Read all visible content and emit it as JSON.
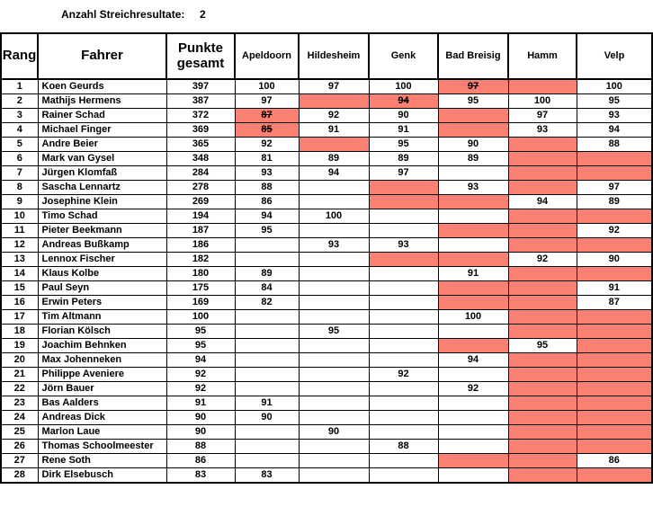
{
  "topbar": {
    "label": "Anzahl Streichresultate:",
    "value": "2"
  },
  "colors": {
    "highlight": "#FA8072",
    "border": "#000000",
    "background": "#FFFFFF"
  },
  "table": {
    "headers": {
      "rang": "Rang",
      "fahrer": "Fahrer",
      "punkte": "Punkte gesamt",
      "races": [
        "Apeldoorn",
        "Hildesheim",
        "Genk",
        "Bad Breisig",
        "Hamm",
        "Velp"
      ]
    },
    "race_keys": [
      "apeldoorn",
      "hildesheim",
      "genk",
      "bad-breisig",
      "hamm",
      "velp"
    ],
    "rows": [
      {
        "rang": "1",
        "fahrer": "Koen Geurds",
        "punkte": "397",
        "results": [
          {
            "value": "100"
          },
          {
            "value": "97"
          },
          {
            "value": "100"
          },
          {
            "value": "97",
            "red": true,
            "strike": true
          },
          {
            "red": true
          },
          {
            "value": "100"
          }
        ]
      },
      {
        "rang": "2",
        "fahrer": "Mathijs Hermens",
        "punkte": "387",
        "results": [
          {
            "value": "97"
          },
          {
            "red": true
          },
          {
            "value": "94",
            "red": true,
            "strike": true
          },
          {
            "value": "95"
          },
          {
            "value": "100"
          },
          {
            "value": "95"
          }
        ]
      },
      {
        "rang": "3",
        "fahrer": "Rainer Schad",
        "punkte": "372",
        "results": [
          {
            "value": "87",
            "red": true,
            "strike": true
          },
          {
            "value": "92"
          },
          {
            "value": "90"
          },
          {
            "red": true
          },
          {
            "value": "97"
          },
          {
            "value": "93"
          }
        ]
      },
      {
        "rang": "4",
        "fahrer": "Michael Finger",
        "punkte": "369",
        "results": [
          {
            "value": "85",
            "red": true,
            "strike": true
          },
          {
            "value": "91"
          },
          {
            "value": "91"
          },
          {
            "red": true
          },
          {
            "value": "93"
          },
          {
            "value": "94"
          }
        ]
      },
      {
        "rang": "5",
        "fahrer": "Andre Beier",
        "punkte": "365",
        "results": [
          {
            "value": "92"
          },
          {
            "red": true
          },
          {
            "value": "95"
          },
          {
            "value": "90"
          },
          {
            "red": true
          },
          {
            "value": "88"
          }
        ]
      },
      {
        "rang": "6",
        "fahrer": "Mark van Gysel",
        "punkte": "348",
        "results": [
          {
            "value": "81"
          },
          {
            "value": "89"
          },
          {
            "value": "89"
          },
          {
            "value": "89"
          },
          {
            "red": true
          },
          {
            "red": true
          }
        ]
      },
      {
        "rang": "7",
        "fahrer": "Jürgen Klomfaß",
        "punkte": "284",
        "results": [
          {
            "value": "93"
          },
          {
            "value": "94"
          },
          {
            "value": "97"
          },
          {},
          {
            "red": true
          },
          {
            "red": true
          }
        ]
      },
      {
        "rang": "8",
        "fahrer": "Sascha Lennartz",
        "punkte": "278",
        "results": [
          {
            "value": "88"
          },
          {},
          {
            "red": true
          },
          {
            "value": "93"
          },
          {
            "red": true
          },
          {
            "value": "97"
          }
        ]
      },
      {
        "rang": "9",
        "fahrer": "Josephine Klein",
        "punkte": "269",
        "results": [
          {
            "value": "86"
          },
          {},
          {
            "red": true
          },
          {
            "red": true
          },
          {
            "value": "94"
          },
          {
            "value": "89"
          }
        ]
      },
      {
        "rang": "10",
        "fahrer": "Timo Schad",
        "punkte": "194",
        "results": [
          {
            "value": "94"
          },
          {
            "value": "100"
          },
          {},
          {},
          {
            "red": true
          },
          {
            "red": true
          }
        ]
      },
      {
        "rang": "11",
        "fahrer": "Pieter Beekmann",
        "punkte": "187",
        "results": [
          {
            "value": "95"
          },
          {},
          {},
          {
            "red": true
          },
          {
            "red": true
          },
          {
            "value": "92"
          }
        ]
      },
      {
        "rang": "12",
        "fahrer": "Andreas Bußkamp",
        "punkte": "186",
        "results": [
          {},
          {
            "value": "93"
          },
          {
            "value": "93"
          },
          {},
          {
            "red": true
          },
          {
            "red": true
          }
        ]
      },
      {
        "rang": "13",
        "fahrer": "Lennox Fischer",
        "punkte": "182",
        "results": [
          {},
          {},
          {
            "red": true
          },
          {
            "red": true
          },
          {
            "value": "92"
          },
          {
            "value": "90"
          }
        ]
      },
      {
        "rang": "14",
        "fahrer": "Klaus Kolbe",
        "punkte": "180",
        "results": [
          {
            "value": "89"
          },
          {},
          {},
          {
            "value": "91"
          },
          {
            "red": true
          },
          {
            "red": true
          }
        ]
      },
      {
        "rang": "15",
        "fahrer": "Paul Seyn",
        "punkte": "175",
        "results": [
          {
            "value": "84"
          },
          {},
          {},
          {
            "red": true
          },
          {
            "red": true
          },
          {
            "value": "91"
          }
        ]
      },
      {
        "rang": "16",
        "fahrer": "Erwin Peters",
        "punkte": "169",
        "results": [
          {
            "value": "82"
          },
          {},
          {},
          {
            "red": true
          },
          {
            "red": true
          },
          {
            "value": "87"
          }
        ]
      },
      {
        "rang": "17",
        "fahrer": "Tim Altmann",
        "punkte": "100",
        "results": [
          {},
          {},
          {},
          {
            "value": "100"
          },
          {
            "red": true
          },
          {
            "red": true
          }
        ]
      },
      {
        "rang": "18",
        "fahrer": "Florian Kölsch",
        "punkte": "95",
        "results": [
          {},
          {
            "value": "95"
          },
          {},
          {},
          {
            "red": true
          },
          {
            "red": true
          }
        ]
      },
      {
        "rang": "19",
        "fahrer": "Joachim Behnken",
        "punkte": "95",
        "results": [
          {},
          {},
          {},
          {
            "red": true
          },
          {
            "value": "95"
          },
          {
            "red": true
          }
        ]
      },
      {
        "rang": "20",
        "fahrer": "Max Johenneken",
        "punkte": "94",
        "results": [
          {},
          {},
          {},
          {
            "value": "94"
          },
          {
            "red": true
          },
          {
            "red": true
          }
        ]
      },
      {
        "rang": "21",
        "fahrer": "Philippe Aveniere",
        "punkte": "92",
        "results": [
          {},
          {},
          {
            "value": "92"
          },
          {},
          {
            "red": true
          },
          {
            "red": true
          }
        ]
      },
      {
        "rang": "22",
        "fahrer": "Jörn Bauer",
        "punkte": "92",
        "results": [
          {},
          {},
          {},
          {
            "value": "92"
          },
          {
            "red": true
          },
          {
            "red": true
          }
        ]
      },
      {
        "rang": "23",
        "fahrer": "Bas Aalders",
        "punkte": "91",
        "results": [
          {
            "value": "91"
          },
          {},
          {},
          {},
          {
            "red": true
          },
          {
            "red": true
          }
        ]
      },
      {
        "rang": "24",
        "fahrer": "Andreas Dick",
        "punkte": "90",
        "results": [
          {
            "value": "90"
          },
          {},
          {},
          {},
          {
            "red": true
          },
          {
            "red": true
          }
        ]
      },
      {
        "rang": "25",
        "fahrer": "Marlon Laue",
        "punkte": "90",
        "results": [
          {},
          {
            "value": "90"
          },
          {},
          {},
          {
            "red": true
          },
          {
            "red": true
          }
        ]
      },
      {
        "rang": "26",
        "fahrer": "Thomas Schoolmeester",
        "punkte": "88",
        "results": [
          {},
          {},
          {
            "value": "88"
          },
          {},
          {
            "red": true
          },
          {
            "red": true
          }
        ]
      },
      {
        "rang": "27",
        "fahrer": "Rene Soth",
        "punkte": "86",
        "results": [
          {},
          {},
          {},
          {
            "red": true
          },
          {
            "red": true
          },
          {
            "value": "86"
          }
        ]
      },
      {
        "rang": "28",
        "fahrer": "Dirk Elsebusch",
        "punkte": "83",
        "results": [
          {
            "value": "83"
          },
          {},
          {},
          {},
          {
            "red": true
          },
          {
            "red": true
          }
        ]
      }
    ]
  }
}
